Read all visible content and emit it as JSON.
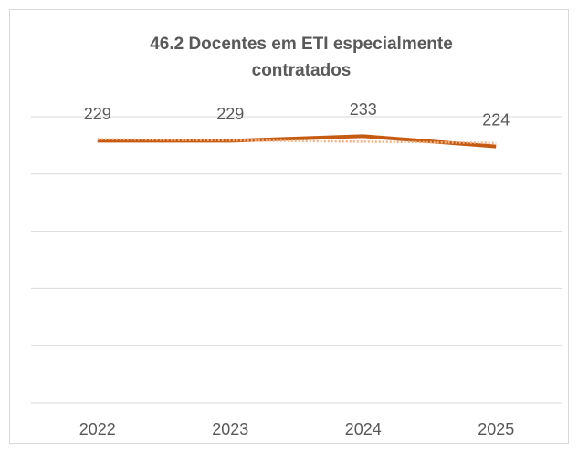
{
  "chart_data": {
    "type": "line",
    "title": "46.2 Docentes em ETI especialmente contratados",
    "categories": [
      "2022",
      "2023",
      "2024",
      "2025"
    ],
    "series": [
      {
        "name": "Docentes em ETI especialmente contratados",
        "color": "#c55a11",
        "values": [
          229,
          229,
          233,
          224
        ]
      }
    ],
    "trendline_color": "#f4b183",
    "ylim": [
      0,
      250
    ],
    "yticks": [
      0,
      50,
      100,
      150,
      200,
      250
    ],
    "grid": true
  }
}
